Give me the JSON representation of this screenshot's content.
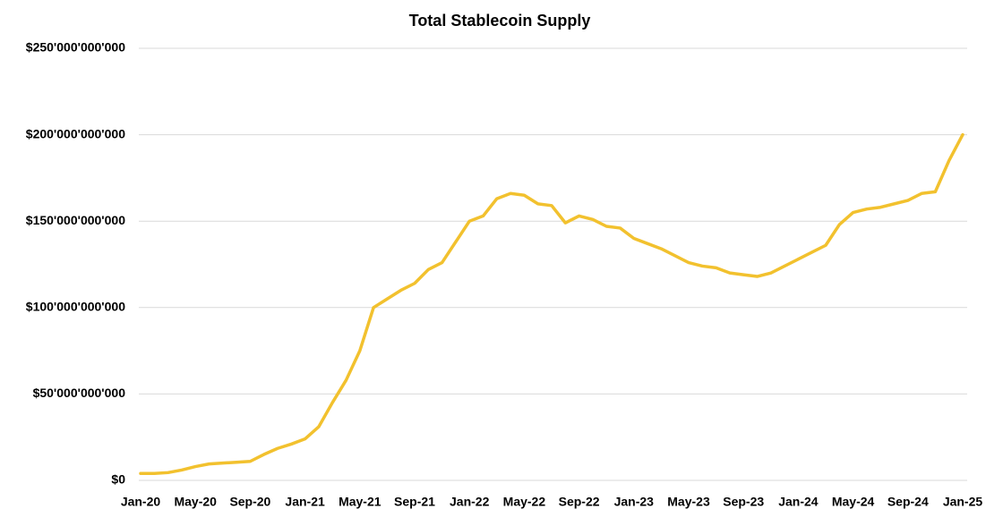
{
  "chart_data": {
    "type": "line",
    "title": "Total Stablecoin Supply",
    "categories": [
      "Jan-20",
      null,
      null,
      null,
      "May-20",
      null,
      null,
      null,
      "Sep-20",
      null,
      null,
      null,
      "Jan-21",
      null,
      null,
      null,
      "May-21",
      null,
      null,
      null,
      "Sep-21",
      null,
      null,
      null,
      "Jan-22",
      null,
      null,
      null,
      "May-22",
      null,
      null,
      null,
      "Sep-22",
      null,
      null,
      null,
      "Jan-23",
      null,
      null,
      null,
      "May-23",
      null,
      null,
      null,
      "Sep-23",
      null,
      null,
      null,
      "Jan-24",
      null,
      null,
      null,
      "May-24",
      null,
      null,
      null,
      "Sep-24",
      null,
      null,
      null,
      "Jan-25"
    ],
    "values": [
      4000000000,
      4000000000,
      4500000000,
      6000000000,
      8000000000,
      9500000000,
      10000000000,
      10500000000,
      11000000000,
      15000000000,
      18500000000,
      21000000000,
      24000000000,
      31000000000,
      45000000000,
      58000000000,
      75000000000,
      100000000000,
      105000000000,
      110000000000,
      114000000000,
      122000000000,
      126000000000,
      138000000000,
      150000000000,
      153000000000,
      163000000000,
      166000000000,
      165000000000,
      160000000000,
      159000000000,
      149000000000,
      153000000000,
      151000000000,
      147000000000,
      146000000000,
      140000000000,
      137000000000,
      134000000000,
      130000000000,
      126000000000,
      124000000000,
      123000000000,
      120000000000,
      119000000000,
      118000000000,
      120000000000,
      124000000000,
      128000000000,
      132000000000,
      136000000000,
      148000000000,
      155000000000,
      157000000000,
      158000000000,
      160000000000,
      162000000000,
      166000000000,
      167000000000,
      185000000000,
      200000000000
    ],
    "color": "#f2c12e",
    "ylim": [
      0,
      250000000000
    ],
    "yticks": [
      {
        "value": 0,
        "label": "$0"
      },
      {
        "value": 50000000000,
        "label": "$50'000'000'000"
      },
      {
        "value": 100000000000,
        "label": "$100'000'000'000"
      },
      {
        "value": 150000000000,
        "label": "$150'000'000'000"
      },
      {
        "value": 200000000000,
        "label": "$200'000'000'000"
      },
      {
        "value": 250000000000,
        "label": "$250'000'000'000"
      }
    ],
    "grid": true
  }
}
